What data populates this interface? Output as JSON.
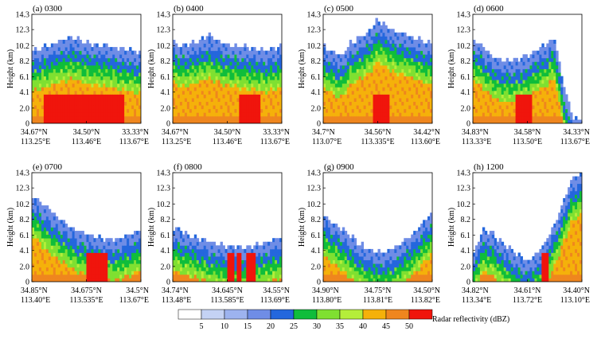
{
  "figure": {
    "ylabel": "Height (km)",
    "colorbar": {
      "label": "Radar reflectivity (dBZ)",
      "bins": [
        {
          "color": "#ffffff",
          "value": 5
        },
        {
          "color": "#c4d2f4",
          "value": 10
        },
        {
          "color": "#9db3ef",
          "value": 15
        },
        {
          "color": "#6f8de6",
          "value": 20
        },
        {
          "color": "#2467dd",
          "value": 25
        },
        {
          "color": "#0fbd3b",
          "value": 30
        },
        {
          "color": "#7fe031",
          "value": 35
        },
        {
          "color": "#b5ee3a",
          "value": 40
        },
        {
          "color": "#f5b10a",
          "value": 45
        },
        {
          "color": "#ef861e",
          "value": 50
        },
        {
          "color": "#f0150c",
          "value": null
        }
      ],
      "tick_labels": [
        "5",
        "10",
        "15",
        "20",
        "25",
        "30",
        "35",
        "40",
        "45",
        "50"
      ]
    }
  },
  "chart_data": [
    {
      "type": "heatmap",
      "title": "(a) 0300",
      "ylim": [
        0,
        14.3
      ],
      "yticks": [
        "14.3",
        "12.3",
        "10.2",
        "8.2",
        "6.1",
        "4.1",
        "2.0",
        "0"
      ],
      "xticks": [
        {
          "lat": "34.67°N",
          "lon": "113.25°E"
        },
        {
          "lat": "34.50°N",
          "lon": "113.46°E"
        },
        {
          "lat": "33.33°N",
          "lon": "113.67°E"
        }
      ],
      "echo_top_km": [
        9.5,
        10.0,
        10.4,
        10.8,
        11.2,
        11.1,
        10.6,
        10.4,
        10.3,
        10.0,
        9.8,
        9.6,
        9.3
      ],
      "cell_x_frac": [
        0.1,
        0.85
      ],
      "max_dbz": 50
    },
    {
      "type": "heatmap",
      "title": "(b) 0400",
      "ylim": [
        0,
        14.3
      ],
      "yticks": [
        "14.3",
        "12.3",
        "10.2",
        "8.2",
        "6.1",
        "4.1",
        "2.0",
        "0"
      ],
      "xticks": [
        {
          "lat": "34.67°N",
          "lon": "113.25°E"
        },
        {
          "lat": "34.50°N",
          "lon": "113.46°E"
        },
        {
          "lat": "33.33°N",
          "lon": "113.67°E"
        }
      ],
      "echo_top_km": [
        10.8,
        10.2,
        10.5,
        11.0,
        11.5,
        10.8,
        10.4,
        10.2,
        10.0,
        9.8,
        9.6,
        9.8,
        10.2
      ],
      "cell_x_frac": [
        0.6,
        0.8
      ],
      "max_dbz": 50
    },
    {
      "type": "heatmap",
      "title": "(c) 0500",
      "ylim": [
        0,
        14.3
      ],
      "yticks": [
        "14.3",
        "12.3",
        "10.2",
        "8.2",
        "6.1",
        "4.1",
        "2.0",
        "0"
      ],
      "xticks": [
        {
          "lat": "34.7°N",
          "lon": "113.07°E"
        },
        {
          "lat": "34.56°N",
          "lon": "113.335°E"
        },
        {
          "lat": "34.42°N",
          "lon": "113.60°E"
        }
      ],
      "echo_top_km": [
        10.2,
        9.4,
        8.8,
        10.5,
        11.3,
        12.0,
        13.6,
        12.8,
        12.0,
        11.8,
        11.3,
        10.8,
        10.5
      ],
      "cell_x_frac": [
        0.45,
        0.6
      ],
      "max_dbz": 50
    },
    {
      "type": "heatmap",
      "title": "(d) 0600",
      "ylim": [
        0,
        14.3
      ],
      "yticks": [
        "14.3",
        "12.3",
        "10.2",
        "8.2",
        "6.1",
        "4.1",
        "2.0",
        "0"
      ],
      "xticks": [
        {
          "lat": "34.83°N",
          "lon": "113.33°E"
        },
        {
          "lat": "34.58°N",
          "lon": "113.50°E"
        },
        {
          "lat": "34.33°N",
          "lon": "113.67°E"
        }
      ],
      "echo_top_km": [
        11.0,
        10.2,
        9.0,
        8.4,
        8.2,
        8.4,
        8.8,
        9.6,
        10.4,
        11.2,
        5.0,
        0.6,
        0.5
      ],
      "cell_x_frac": [
        0.4,
        0.55
      ],
      "max_dbz": 50
    },
    {
      "type": "heatmap",
      "title": "(e) 0700",
      "ylim": [
        0,
        14.3
      ],
      "yticks": [
        "14.3",
        "12.3",
        "10.2",
        "8.2",
        "6.1",
        "4.1",
        "2.0",
        "0"
      ],
      "xticks": [
        {
          "lat": "34.85°N",
          "lon": "113.40°E"
        },
        {
          "lat": "34.675°N",
          "lon": "113.535°E"
        },
        {
          "lat": "34.5°N",
          "lon": "113.67°E"
        }
      ],
      "echo_top_km": [
        11.5,
        10.3,
        9.3,
        8.3,
        7.5,
        6.8,
        6.3,
        5.9,
        5.7,
        5.6,
        5.9,
        6.3,
        7.0
      ],
      "cell_x_frac": [
        0.5,
        0.7
      ],
      "max_dbz": 50
    },
    {
      "type": "heatmap",
      "title": "(f) 0800",
      "ylim": [
        0,
        14.3
      ],
      "yticks": [
        "14.3",
        "12.3",
        "10.2",
        "8.2",
        "6.1",
        "4.1",
        "2.0",
        "0"
      ],
      "xticks": [
        {
          "lat": "34.74°N",
          "lon": "113.48°E"
        },
        {
          "lat": "34.645°N",
          "lon": "113.585°E"
        },
        {
          "lat": "34.55°N",
          "lon": "113.69°E"
        }
      ],
      "echo_top_km": [
        7.2,
        6.6,
        6.1,
        5.7,
        5.3,
        4.9,
        4.7,
        4.6,
        4.6,
        4.8,
        5.1,
        5.5,
        6.0
      ],
      "cell_x_frac": [
        0.5,
        0.75
      ],
      "max_dbz": 50
    },
    {
      "type": "heatmap",
      "title": "(g) 0900",
      "ylim": [
        0,
        14.3
      ],
      "yticks": [
        "14.3",
        "12.3",
        "10.2",
        "8.2",
        "6.1",
        "4.1",
        "2.0",
        "0"
      ],
      "xticks": [
        {
          "lat": "34.90°N",
          "lon": "113.80°E"
        },
        {
          "lat": "34.75°N",
          "lon": "113.81°E"
        },
        {
          "lat": "34.50°N",
          "lon": "113.82°E"
        }
      ],
      "echo_top_km": [
        8.8,
        7.9,
        7.0,
        6.0,
        5.0,
        4.3,
        3.9,
        4.0,
        4.6,
        5.4,
        6.5,
        7.8,
        9.2
      ],
      "cell_x_frac": [
        0.45,
        0.6
      ],
      "max_dbz": 50
    },
    {
      "type": "heatmap",
      "title": "(h) 1200",
      "ylim": [
        0,
        14.3
      ],
      "yticks": [
        "14.3",
        "12.3",
        "10.2",
        "8.2",
        "6.1",
        "4.1",
        "2.0",
        "0"
      ],
      "xticks": [
        {
          "lat": "34.82°N",
          "lon": "113.34°E"
        },
        {
          "lat": "34.61°N",
          "lon": "113.72°E"
        },
        {
          "lat": "34.40°N",
          "lon": "113.10°E"
        }
      ],
      "echo_top_km": [
        3.2,
        6.8,
        6.5,
        5.4,
        4.4,
        3.4,
        2.7,
        3.6,
        5.2,
        7.6,
        10.6,
        13.6,
        14.3
      ],
      "cell_x_frac": [
        0.55,
        0.7
      ],
      "max_dbz": 50
    }
  ]
}
